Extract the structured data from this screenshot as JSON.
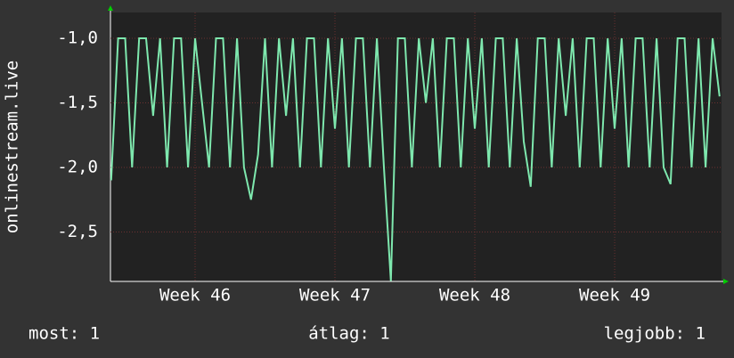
{
  "chart_data": {
    "type": "line",
    "y_label": "onlinestream.live",
    "x": [
      45.4,
      45.45,
      45.5,
      45.55,
      45.6,
      45.65,
      45.7,
      45.75,
      45.8,
      45.85,
      45.9,
      45.95,
      46.0,
      46.05,
      46.1,
      46.15,
      46.2,
      46.25,
      46.3,
      46.35,
      46.4,
      46.45,
      46.5,
      46.55,
      46.6,
      46.65,
      46.7,
      46.75,
      46.8,
      46.85,
      46.9,
      46.95,
      47.0,
      47.05,
      47.1,
      47.15,
      47.2,
      47.25,
      47.3,
      47.35,
      47.4,
      47.45,
      47.5,
      47.55,
      47.6,
      47.65,
      47.7,
      47.75,
      47.8,
      47.85,
      47.9,
      47.95,
      48.0,
      48.05,
      48.1,
      48.15,
      48.2,
      48.25,
      48.3,
      48.35,
      48.4,
      48.45,
      48.5,
      48.55,
      48.6,
      48.65,
      48.7,
      48.75,
      48.8,
      48.85,
      48.9,
      48.95,
      49.0,
      49.05,
      49.1,
      49.15,
      49.2,
      49.25,
      49.3,
      49.35,
      49.4,
      49.45,
      49.5,
      49.55,
      49.6,
      49.65,
      49.7,
      49.75
    ],
    "series": [
      {
        "color": "#7ee8ae",
        "values": [
          -2.1,
          -1,
          -1,
          -2,
          -1,
          -1,
          -1.6,
          -1,
          -2,
          -1,
          -1,
          -2,
          -1,
          -1.5,
          -2,
          -1,
          -1,
          -2,
          -1,
          -2,
          -2.25,
          -1.9,
          -1,
          -2,
          -1,
          -1.6,
          -1,
          -2,
          -1,
          -1,
          -2,
          -1,
          -1.7,
          -1,
          -2,
          -1,
          -1,
          -2,
          -1,
          -2,
          -2.88,
          -1,
          -1,
          -2,
          -1,
          -1.5,
          -1,
          -2,
          -1,
          -1,
          -2,
          -1,
          -1.7,
          -1,
          -2,
          -1,
          -1,
          -2,
          -1,
          -1.8,
          -2.15,
          -1,
          -1,
          -2,
          -1,
          -1.6,
          -1,
          -2,
          -1,
          -1,
          -2,
          -1,
          -1.7,
          -1,
          -2,
          -1,
          -1,
          -2,
          -1,
          -2,
          -2.13,
          -1,
          -1,
          -2,
          -1,
          -2,
          -1,
          -1.45
        ]
      }
    ],
    "xlim": [
      45.395,
      49.764
    ],
    "xticks": [
      {
        "value": 46,
        "label": "Week 46"
      },
      {
        "value": 47,
        "label": "Week 47"
      },
      {
        "value": 48,
        "label": "Week 48"
      },
      {
        "value": 49,
        "label": "Week 49"
      }
    ],
    "ylim": [
      -2.883,
      -0.8
    ],
    "yticks": [
      {
        "value": -1,
        "label": "-1,0"
      },
      {
        "value": -1.5,
        "label": "-1,5"
      },
      {
        "value": -2,
        "label": "-2,0"
      },
      {
        "value": -2.5,
        "label": "-2,5"
      }
    ],
    "grid": true,
    "legend_items": [
      "most: 1",
      "átlag: 1",
      "legjobb: 1"
    ]
  }
}
